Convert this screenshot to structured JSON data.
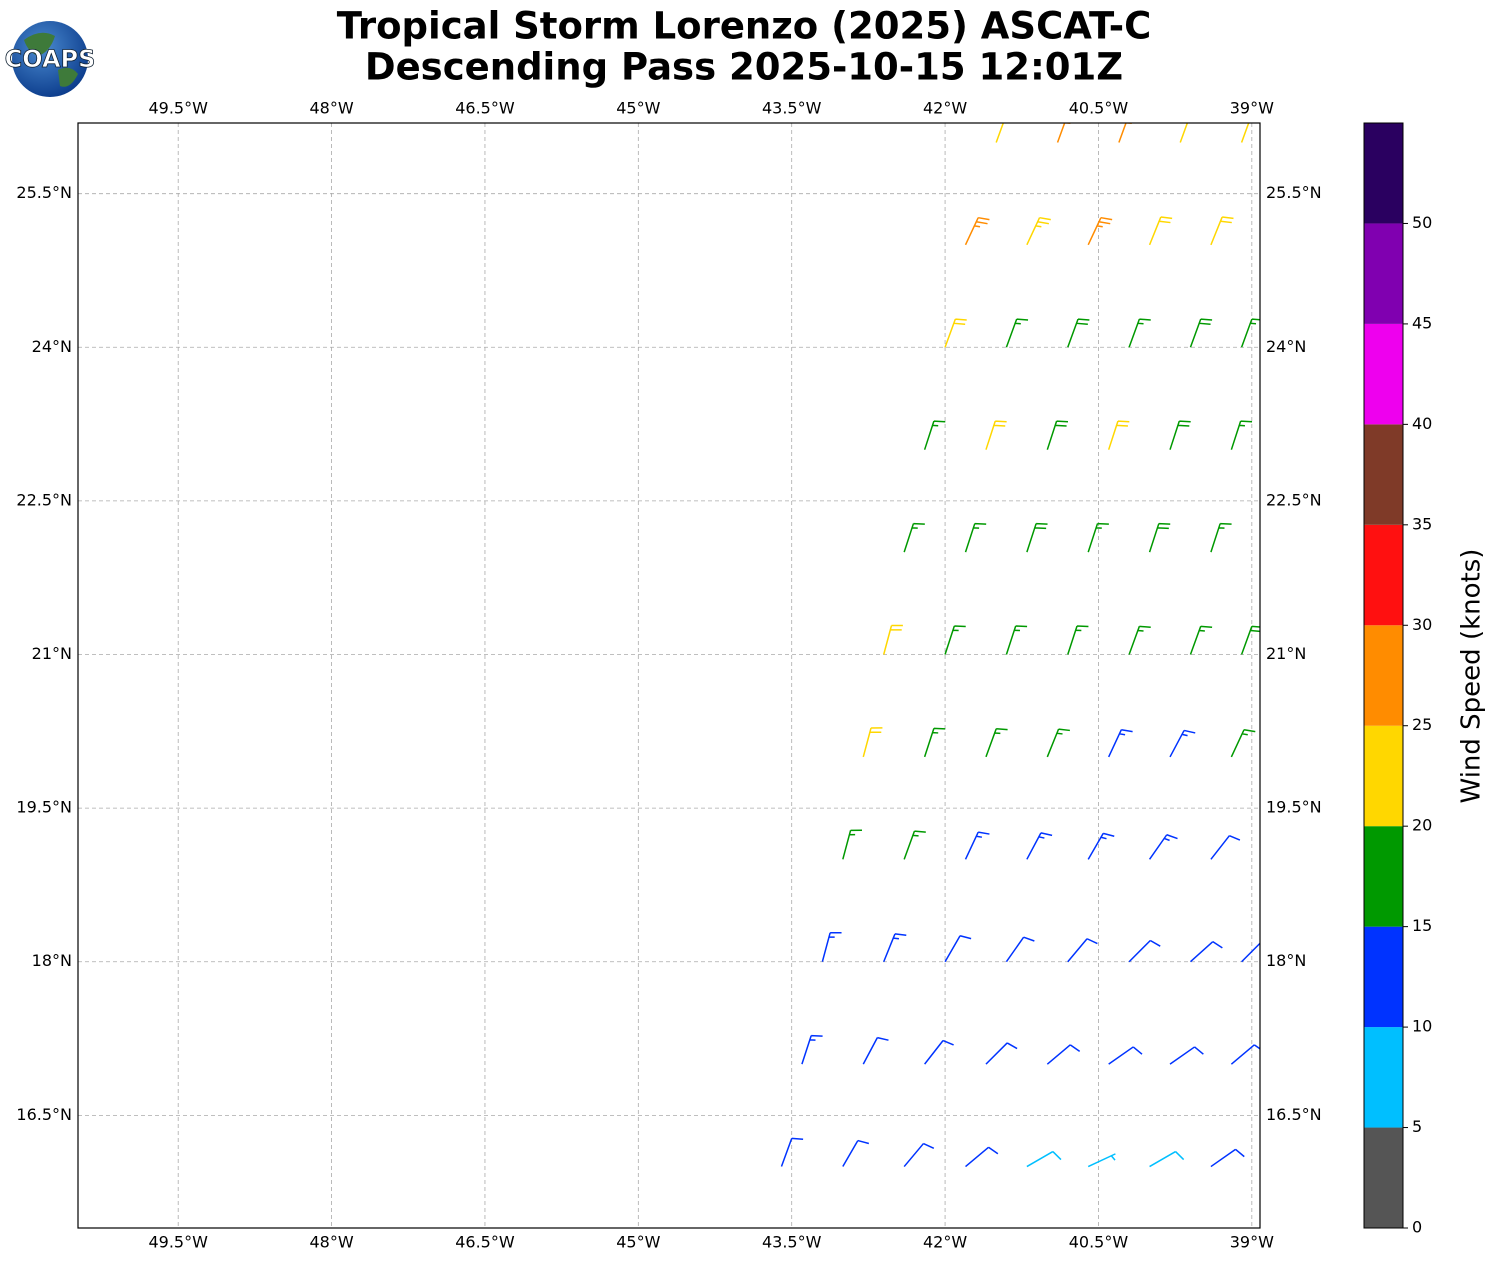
{
  "chart_data": {
    "type": "barbs",
    "logo": "COAPS",
    "title": "Tropical Storm Lorenzo (2025) ASCAT-C",
    "subtitle": "Descending Pass 2025-10-15 12:01Z",
    "lonlim": [
      -50.48,
      -38.92
    ],
    "latlim": [
      15.4,
      26.19
    ],
    "xticks": [
      {
        "value": -49.5,
        "label": "49.5°W"
      },
      {
        "value": -48,
        "label": "48°W"
      },
      {
        "value": -46.5,
        "label": "46.5°W"
      },
      {
        "value": -45,
        "label": "45°W"
      },
      {
        "value": -43.5,
        "label": "43.5°W"
      },
      {
        "value": -42,
        "label": "42°W"
      },
      {
        "value": -40.5,
        "label": "40.5°W"
      },
      {
        "value": -39,
        "label": "39°W"
      }
    ],
    "yticks": [
      {
        "value": 16.5,
        "label": "16.5°N"
      },
      {
        "value": 18,
        "label": "18°N"
      },
      {
        "value": 19.5,
        "label": "19.5°N"
      },
      {
        "value": 21,
        "label": "21°N"
      },
      {
        "value": 22.5,
        "label": "22.5°N"
      },
      {
        "value": 24,
        "label": "24°N"
      },
      {
        "value": 25.5,
        "label": "25.5°N"
      }
    ],
    "grid": true,
    "colorbar": {
      "label": "Wind Speed (knots)",
      "bounds": [
        0,
        5,
        10,
        15,
        20,
        25,
        30,
        35,
        40,
        45,
        50,
        55
      ],
      "colors": [
        "#555555",
        "#00bfff",
        "#0033ff",
        "#009900",
        "#ffd700",
        "#ff8c00",
        "#ff1010",
        "#7f3a28",
        "#ee00ee",
        "#8000b0",
        "#2a0060"
      ],
      "ticks": [
        0,
        5,
        10,
        15,
        20,
        25,
        30,
        35,
        40,
        45,
        50
      ]
    },
    "barbs": [
      [
        -41.5,
        26,
        22,
        20
      ],
      [
        -40.9,
        26,
        26,
        20
      ],
      [
        -40.3,
        26,
        27,
        20
      ],
      [
        -39.7,
        26,
        22,
        20
      ],
      [
        -39.1,
        26,
        21,
        20
      ],
      [
        -41.8,
        25,
        27,
        25
      ],
      [
        -41.2,
        25,
        24,
        25
      ],
      [
        -40.6,
        25,
        27,
        25
      ],
      [
        -40.0,
        25,
        22,
        22
      ],
      [
        -39.4,
        25,
        22,
        22
      ],
      [
        -42.0,
        24,
        22,
        20
      ],
      [
        -41.4,
        24,
        17,
        20
      ],
      [
        -40.8,
        24,
        18,
        20
      ],
      [
        -40.2,
        24,
        17,
        20
      ],
      [
        -39.6,
        24,
        18,
        20
      ],
      [
        -39.1,
        24,
        17,
        20
      ],
      [
        -42.2,
        23,
        17,
        18
      ],
      [
        -41.6,
        23,
        22,
        18
      ],
      [
        -41.0,
        23,
        18,
        18
      ],
      [
        -40.4,
        23,
        22,
        18
      ],
      [
        -39.8,
        23,
        18,
        18
      ],
      [
        -39.2,
        23,
        17,
        18
      ],
      [
        -42.4,
        22,
        17,
        18
      ],
      [
        -41.8,
        22,
        17,
        18
      ],
      [
        -41.2,
        22,
        18,
        18
      ],
      [
        -40.6,
        22,
        17,
        18
      ],
      [
        -40.0,
        22,
        18,
        18
      ],
      [
        -39.4,
        22,
        16,
        18
      ],
      [
        -42.6,
        21,
        22,
        15
      ],
      [
        -42.0,
        21,
        17,
        18
      ],
      [
        -41.4,
        21,
        17,
        18
      ],
      [
        -40.8,
        21,
        16,
        18
      ],
      [
        -40.2,
        21,
        17,
        20
      ],
      [
        -39.6,
        21,
        16,
        20
      ],
      [
        -39.1,
        21,
        18,
        20
      ],
      [
        -42.8,
        20,
        21,
        15
      ],
      [
        -42.2,
        20,
        17,
        18
      ],
      [
        -41.6,
        20,
        16,
        20
      ],
      [
        -41.0,
        20,
        16,
        22
      ],
      [
        -40.4,
        20,
        14,
        25
      ],
      [
        -39.8,
        20,
        14,
        28
      ],
      [
        -39.2,
        20,
        15,
        25
      ],
      [
        -43.0,
        19,
        17,
        15
      ],
      [
        -42.4,
        19,
        16,
        20
      ],
      [
        -41.8,
        19,
        14,
        25
      ],
      [
        -41.2,
        19,
        14,
        28
      ],
      [
        -40.6,
        19,
        13,
        30
      ],
      [
        -40.0,
        19,
        13,
        35
      ],
      [
        -39.4,
        19,
        12,
        38
      ],
      [
        -43.2,
        18,
        13,
        15
      ],
      [
        -42.6,
        18,
        13,
        22
      ],
      [
        -42.0,
        18,
        12,
        30
      ],
      [
        -41.4,
        18,
        12,
        35
      ],
      [
        -40.8,
        18,
        11,
        40
      ],
      [
        -40.2,
        18,
        12,
        45
      ],
      [
        -39.6,
        18,
        11,
        48
      ],
      [
        -39.1,
        18,
        12,
        45
      ],
      [
        -43.4,
        17,
        13,
        18
      ],
      [
        -42.8,
        17,
        12,
        28
      ],
      [
        -42.2,
        17,
        11,
        38
      ],
      [
        -41.6,
        17,
        11,
        45
      ],
      [
        -41.0,
        17,
        10,
        50
      ],
      [
        -40.4,
        17,
        11,
        55
      ],
      [
        -39.8,
        17,
        11,
        55
      ],
      [
        -39.2,
        17,
        12,
        50
      ],
      [
        -43.6,
        16,
        12,
        20
      ],
      [
        -43.0,
        16,
        11,
        30
      ],
      [
        -42.4,
        16,
        11,
        40
      ],
      [
        -41.8,
        16,
        10,
        50
      ],
      [
        -41.2,
        16,
        8,
        60
      ],
      [
        -40.6,
        16,
        7,
        65
      ],
      [
        -40.0,
        16,
        8,
        60
      ],
      [
        -39.4,
        16,
        10,
        55
      ]
    ]
  }
}
